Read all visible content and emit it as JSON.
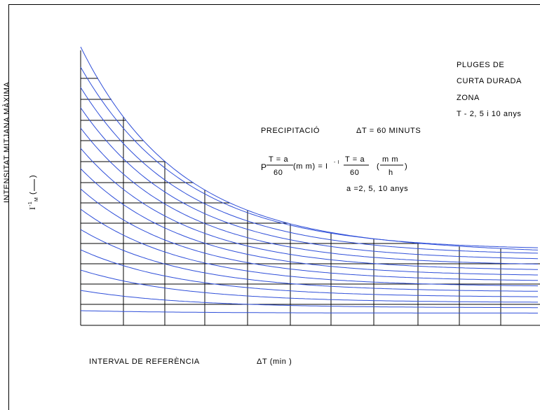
{
  "labels": {
    "y_axis": "INTENSITAT MITJANA MÀXIMA",
    "y_symbol": "I",
    "y_super": "-1",
    "y_sub": "M",
    "y_paren_open": "(",
    "y_paren_close": ")",
    "x_axis": "INTERVAL DE REFERÈNCIA",
    "x_unit": "ΔT (min )",
    "title_lines": [
      "PLUGES DE",
      "CURTA DURADA",
      "ZONA",
      "T - 2, 5 i 10 anys"
    ],
    "precip": "PRECIPITACIÓ",
    "delta_t": "ΔT = 60 MINUTS",
    "formula": {
      "p": "P",
      "num1": "T = a",
      "den1": "60",
      "mid": "(m m) = I",
      "super": "- I",
      "num2": "T = a",
      "den2": "60",
      "paren_open": "(",
      "num3": "m m",
      "den3": "h",
      "paren_close": ")"
    },
    "a_values": "a =2, 5, 10 anys"
  },
  "colors": {
    "curve": "#2f4fd9",
    "grid": "#000000"
  },
  "icons": []
}
